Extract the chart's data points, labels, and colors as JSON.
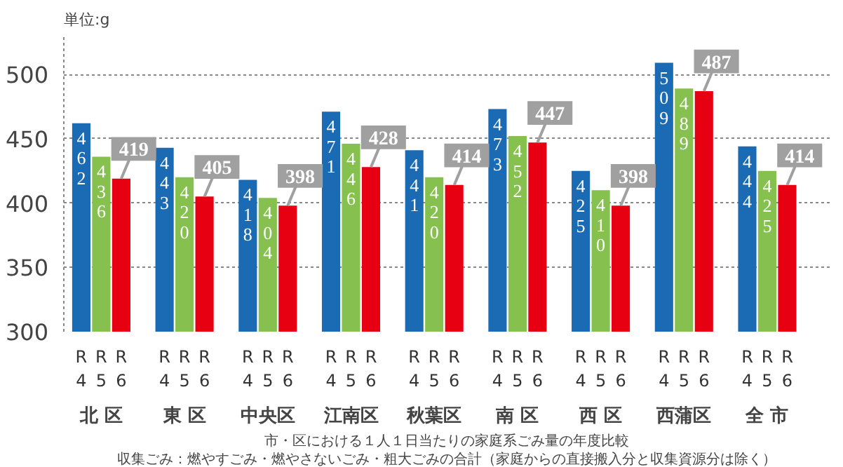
{
  "chart_data": {
    "type": "bar",
    "ylabel": "単位:g",
    "categories": [
      "北 区",
      "東 区",
      "中央区",
      "江南区",
      "秋葉区",
      "南 区",
      "西 区",
      "西蒲区",
      "全 市"
    ],
    "series": [
      {
        "name": "R4",
        "color": "#1a6ab4",
        "values": [
          462,
          443,
          418,
          471,
          441,
          473,
          425,
          509,
          444
        ]
      },
      {
        "name": "R5",
        "color": "#86c150",
        "values": [
          436,
          420,
          404,
          446,
          420,
          452,
          410,
          489,
          425
        ]
      },
      {
        "name": "R6",
        "color": "#e60012",
        "values": [
          419,
          405,
          398,
          428,
          414,
          447,
          398,
          487,
          414
        ]
      }
    ],
    "ylim": [
      300,
      530
    ],
    "yticks": [
      300,
      350,
      400,
      450,
      500
    ],
    "grid": "y",
    "data_labels": true,
    "annotations": [
      "市・区における１人１日当たりの家庭系ごみ量の年度比較",
      "収集ごみ：燃やすごみ・燃やさないごみ・粗大ごみの合計（家庭からの直接搬入分と収集資源分は除く）"
    ]
  }
}
